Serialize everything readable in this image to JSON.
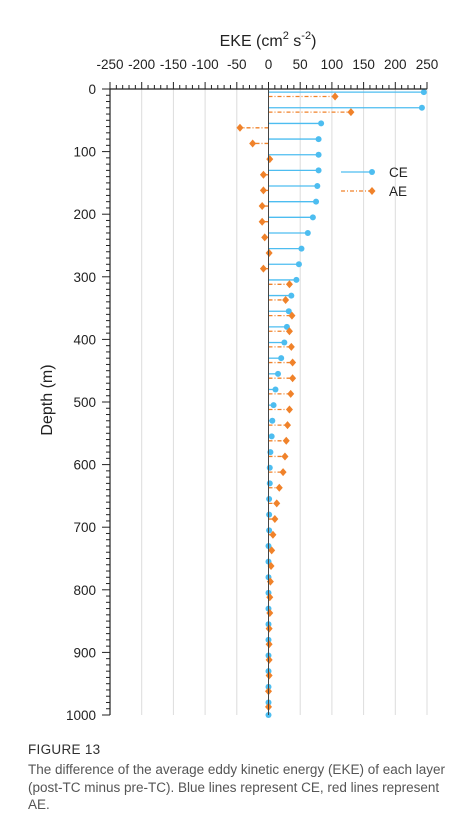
{
  "figure": {
    "label": "FIGURE 13",
    "caption": "The difference of the average eddy kinetic energy (EKE) of each layer (post-TC minus pre-TC). Blue lines represent CE, red lines represent AE."
  },
  "chart_data": {
    "type": "lollipop-horizontal",
    "title": "",
    "xlabel": "EKE (cm2 s-2)",
    "xlabel_parts": {
      "base": "EKE (cm",
      "sup1": "2",
      "mid": " s",
      "sup2": "-2",
      "end": ")"
    },
    "ylabel": "Depth (m)",
    "xlim": [
      -250,
      250
    ],
    "ylim": [
      0,
      1000
    ],
    "y_inverted": true,
    "x_axis_position": "top",
    "xticks": [
      -250,
      -200,
      -150,
      -100,
      -50,
      0,
      50,
      100,
      150,
      200,
      250
    ],
    "xtick_labels": [
      "-250",
      "-200",
      "-150",
      "-100",
      "-50",
      "0",
      "50",
      "100",
      "150",
      "200",
      "250"
    ],
    "yticks": [
      0,
      100,
      200,
      300,
      400,
      500,
      600,
      700,
      800,
      900,
      1000
    ],
    "ytick_labels": [
      "0",
      "100",
      "200",
      "300",
      "400",
      "500",
      "600",
      "700",
      "800",
      "900",
      "1000"
    ],
    "grid": "vertical",
    "legend_position": "upper-right",
    "colors": {
      "CE": "#4dbdf0",
      "AE": "#f0822a",
      "grid": "#dcdcdc",
      "axis": "#222222"
    },
    "series": [
      {
        "name": "CE",
        "line_style": "solid",
        "marker": "circle",
        "depth": [
          5,
          30,
          55,
          80,
          105,
          130,
          155,
          180,
          205,
          230,
          255,
          280,
          305,
          330,
          355,
          380,
          405,
          430,
          455,
          480,
          505,
          530,
          555,
          580,
          605,
          630,
          655,
          680,
          705,
          730,
          755,
          780,
          805,
          830,
          855,
          880,
          905,
          930,
          955,
          980,
          1000
        ],
        "values": [
          245,
          242,
          83,
          79,
          79,
          79,
          77,
          75,
          70,
          62,
          52,
          48,
          44,
          36,
          32,
          29,
          25,
          20,
          15,
          11,
          8,
          6,
          5,
          3,
          2,
          2,
          1,
          1,
          1,
          0,
          0,
          0,
          0,
          0,
          0,
          0,
          0,
          0,
          0,
          0,
          0
        ]
      },
      {
        "name": "AE",
        "line_style": "dash-dot",
        "marker": "diamond",
        "depth": [
          12,
          37,
          62,
          87,
          112,
          137,
          162,
          187,
          212,
          237,
          262,
          287,
          312,
          337,
          362,
          387,
          412,
          437,
          462,
          487,
          512,
          537,
          562,
          587,
          612,
          637,
          662,
          687,
          712,
          737,
          762,
          787,
          812,
          837,
          862,
          887,
          912,
          937,
          962,
          987
        ],
        "values": [
          105,
          130,
          -45,
          -25,
          2,
          -8,
          -8,
          -10,
          -10,
          -6,
          1,
          -8,
          33,
          27,
          37,
          33,
          36,
          38,
          38,
          35,
          33,
          30,
          28,
          26,
          23,
          17,
          13,
          10,
          7,
          5,
          4,
          3,
          2,
          2,
          1,
          1,
          1,
          1,
          0,
          0
        ]
      }
    ]
  }
}
